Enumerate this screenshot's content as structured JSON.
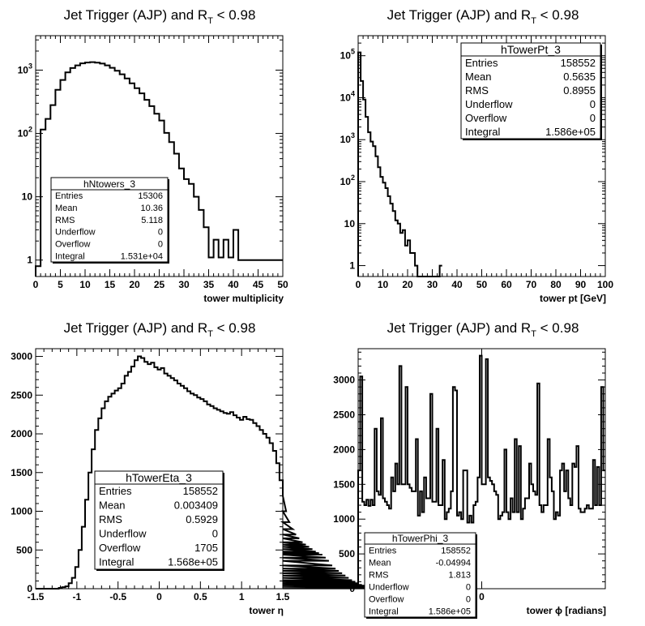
{
  "chart_data": [
    {
      "type": "histogram",
      "title": "Jet Trigger (AJP) and R_T < 0.98",
      "title_main": "Jet Trigger (AJP) and R",
      "title_sub": "T",
      "title_tail": " < 0.98",
      "xlabel": "tower multiplicity",
      "xlim": [
        0,
        50
      ],
      "ylim": [
        0.55,
        3500
      ],
      "log_y": true,
      "xticks": [
        "0",
        "5",
        "10",
        "15",
        "20",
        "25",
        "30",
        "35",
        "40",
        "45",
        "50"
      ],
      "ytick_vals": [
        1,
        10,
        100,
        1000
      ],
      "ytick_labels": [
        {
          "b": "1",
          "e": ""
        },
        {
          "b": "10",
          "e": ""
        },
        {
          "b": "10",
          "e": "2"
        },
        {
          "b": "10",
          "e": "3"
        }
      ],
      "bin_width": 1,
      "values": [
        0.8,
        115,
        170,
        280,
        490,
        700,
        920,
        1080,
        1190,
        1280,
        1320,
        1340,
        1310,
        1270,
        1190,
        1090,
        980,
        860,
        740,
        620,
        520,
        430,
        340,
        270,
        205,
        160,
        102,
        73,
        48,
        28,
        19,
        16,
        10,
        6.2,
        3.3,
        1.1,
        2.1,
        1.1,
        2.1,
        1.1,
        3,
        1,
        1,
        1,
        1,
        1,
        1,
        1,
        1,
        1
      ],
      "stats": {
        "name": "hNtowers_3",
        "rows": [
          {
            "label": "Entries",
            "value": "15306"
          },
          {
            "label": "Mean",
            "value": "10.36"
          },
          {
            "label": "RMS",
            "value": "5.118"
          },
          {
            "label": "Underflow",
            "value": "0"
          },
          {
            "label": "Overflow",
            "value": "0"
          },
          {
            "label": "Integral",
            "value": "1.531e+04"
          }
        ]
      }
    },
    {
      "type": "histogram",
      "title": "Jet Trigger (AJP) and R_T < 0.98",
      "title_main": "Jet Trigger (AJP) and R",
      "title_sub": "T",
      "title_tail": " < 0.98",
      "xlabel": "tower pt [GeV]",
      "xlim": [
        0,
        100
      ],
      "ylim": [
        0.55,
        300000
      ],
      "log_y": true,
      "xticks": [
        "0",
        "10",
        "20",
        "30",
        "40",
        "50",
        "60",
        "70",
        "80",
        "90",
        "100"
      ],
      "ytick_vals": [
        1,
        10,
        100,
        1000,
        10000,
        100000
      ],
      "ytick_labels": [
        {
          "b": "1",
          "e": ""
        },
        {
          "b": "10",
          "e": ""
        },
        {
          "b": "10",
          "e": "2"
        },
        {
          "b": "10",
          "e": "3"
        },
        {
          "b": "10",
          "e": "4"
        },
        {
          "b": "10",
          "e": "5"
        }
      ],
      "bin_width": 1,
      "values": [
        120000,
        25000,
        9000,
        3500,
        1500,
        900,
        700,
        400,
        220,
        130,
        95,
        70,
        45,
        30,
        20,
        12,
        10,
        6,
        7,
        3,
        4,
        2,
        2,
        1,
        0.5,
        0.5,
        0.5,
        0.5,
        0.5,
        0.5,
        0.5,
        0.5,
        0.5,
        1
      ],
      "stats": {
        "name": "hTowerPt_3",
        "rows": [
          {
            "label": "Entries",
            "value": "158552"
          },
          {
            "label": "Mean",
            "value": "0.5635"
          },
          {
            "label": "RMS",
            "value": "0.8955"
          },
          {
            "label": "Underflow",
            "value": "0"
          },
          {
            "label": "Overflow",
            "value": "0"
          },
          {
            "label": "Integral",
            "value": "1.586e+05"
          }
        ]
      }
    },
    {
      "type": "histogram",
      "title": "Jet Trigger (AJP) and R_T < 0.98",
      "title_main": "Jet Trigger (AJP) and R",
      "title_sub": "T",
      "title_tail": " < 0.98",
      "xlabel": "tower η",
      "xlim": [
        -1.5,
        1.5
      ],
      "ylim": [
        0,
        3100
      ],
      "log_y": false,
      "xticks": [
        "-1.5",
        "-1",
        "-0.5",
        "0",
        "0.5",
        "1",
        "1.5"
      ],
      "ytick_vals": [
        0,
        500,
        1000,
        1500,
        2000,
        2500,
        3000
      ],
      "ytick_labels": [
        {
          "b": "0",
          "e": ""
        },
        {
          "b": "500",
          "e": ""
        },
        {
          "b": "1000",
          "e": ""
        },
        {
          "b": "1500",
          "e": ""
        },
        {
          "b": "2000",
          "e": ""
        },
        {
          "b": "2500",
          "e": ""
        },
        {
          "b": "3000",
          "e": ""
        }
      ],
      "bin_width": 0.04,
      "x_start": -1.5,
      "values": [
        0,
        0,
        0,
        0,
        0,
        0,
        0,
        10,
        20,
        30,
        70,
        140,
        280,
        500,
        800,
        1150,
        1500,
        1800,
        2050,
        2200,
        2330,
        2420,
        2480,
        2520,
        2560,
        2590,
        2650,
        2750,
        2800,
        2870,
        2950,
        3000,
        2980,
        2930,
        2900,
        2920,
        2860,
        2830,
        2850,
        2780,
        2750,
        2720,
        2690,
        2650,
        2620,
        2590,
        2550,
        2520,
        2500,
        2470,
        2450,
        2420,
        2380,
        2360,
        2330,
        2310,
        2290,
        2270,
        2260,
        2280,
        2240,
        2210,
        2180,
        2220,
        2190,
        2180,
        2140,
        2100,
        2050,
        2000,
        1950,
        1880,
        1780,
        1620,
        1400,
        1200,
        1000,
        860,
        770,
        700,
        650,
        600,
        570,
        540,
        510,
        480,
        460,
        440,
        400,
        360,
        300,
        260,
        230,
        200,
        170,
        140,
        110,
        90,
        70,
        50,
        40,
        30,
        25,
        20,
        15,
        10,
        8,
        6,
        5,
        4
      ],
      "stats": {
        "name": "hTowerEta_3",
        "rows": [
          {
            "label": "Entries",
            "value": "158552"
          },
          {
            "label": "Mean",
            "value": "0.003409"
          },
          {
            "label": "RMS",
            "value": "0.5929"
          },
          {
            "label": "Underflow",
            "value": "0"
          },
          {
            "label": "Overflow",
            "value": "1705"
          },
          {
            "label": "Integral",
            "value": "1.568e+05"
          }
        ]
      }
    },
    {
      "type": "histogram",
      "title": "Jet Trigger (AJP) and R_T < 0.98",
      "title_main": "Jet Trigger (AJP) and R",
      "title_sub": "T",
      "title_tail": " < 0.98",
      "xlabel": "tower ϕ [radians]",
      "xlim": [
        -3.1416,
        3.1416
      ],
      "ylim": [
        0,
        3450
      ],
      "log_y": false,
      "xticks": [
        "0"
      ],
      "xtick_vals": [
        0
      ],
      "ytick_vals": [
        0,
        500,
        1000,
        1500,
        2000,
        2500,
        3000
      ],
      "ytick_labels": [
        {
          "b": "0",
          "e": ""
        },
        {
          "b": "500",
          "e": ""
        },
        {
          "b": "1000",
          "e": ""
        },
        {
          "b": "1500",
          "e": ""
        },
        {
          "b": "2000",
          "e": ""
        },
        {
          "b": "2500",
          "e": ""
        },
        {
          "b": "3000",
          "e": ""
        }
      ],
      "bin_width": 0.05236,
      "x_start": -3.1416,
      "values": [
        1700,
        3050,
        1250,
        1200,
        1280,
        1190,
        1280,
        1200,
        2300,
        1400,
        1350,
        2450,
        1300,
        1250,
        1200,
        1150,
        1600,
        1400,
        1800,
        1500,
        3200,
        1500,
        1500,
        2900,
        1500,
        1450,
        1400,
        1400,
        2150,
        1050,
        1400,
        1100,
        1600,
        1300,
        1300,
        2800,
        1250,
        1250,
        2300,
        1200,
        1200,
        1850,
        1000,
        1100,
        1150,
        1400,
        2900,
        2850,
        1050,
        1100,
        1000,
        1700,
        1700,
        950,
        1050,
        950,
        1200,
        1250,
        1600,
        3350,
        1500,
        1500,
        3300,
        1600,
        1550,
        1500,
        1400,
        1350,
        1000,
        1050,
        1100,
        2000,
        1100,
        1000,
        1300,
        1100,
        2150,
        1100,
        2050,
        1000,
        1150,
        1300,
        1300,
        1800,
        1500,
        1400,
        1350,
        2950,
        1200,
        1100,
        1200,
        1200,
        2150,
        1600,
        1400,
        1000,
        1100,
        1050,
        1700,
        1800,
        1400,
        1700,
        1300,
        1200,
        1800,
        1750,
        2050,
        1150,
        1100,
        1100,
        1150,
        1200,
        1150,
        1150,
        1850,
        1200,
        1750,
        1200,
        2900,
        1700
      ],
      "stats": {
        "name": "hTowerPhi_3",
        "rows": [
          {
            "label": "Entries",
            "value": "158552"
          },
          {
            "label": "Mean",
            "value": "-0.04994"
          },
          {
            "label": "RMS",
            "value": "1.813"
          },
          {
            "label": "Underflow",
            "value": "0"
          },
          {
            "label": "Overflow",
            "value": "0"
          },
          {
            "label": "Integral",
            "value": "1.586e+05"
          }
        ]
      }
    }
  ]
}
